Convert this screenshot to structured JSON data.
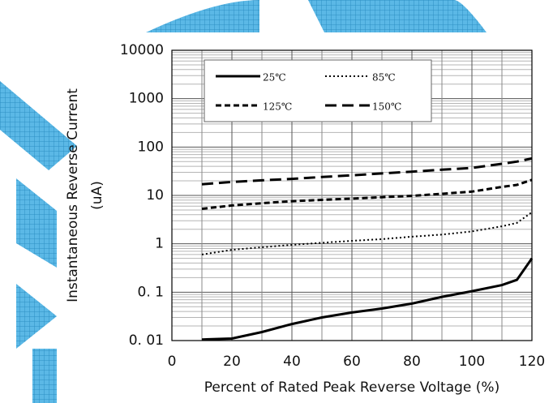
{
  "chart_data": {
    "type": "line",
    "xlabel": "Percent of Rated Peak Reverse Voltage (%)",
    "ylabel": [
      "Instantaneous Reverse Current",
      "(uA)"
    ],
    "x": [
      10,
      20,
      30,
      40,
      50,
      60,
      70,
      80,
      90,
      100,
      110,
      115,
      120
    ],
    "series": [
      {
        "name": "25℃",
        "color": "#000000",
        "style": "solid",
        "values": [
          0.0105,
          0.011,
          0.015,
          0.022,
          0.03,
          0.038,
          0.046,
          0.058,
          0.08,
          0.105,
          0.14,
          0.18,
          0.5
        ]
      },
      {
        "name": "85℃",
        "color": "#000000",
        "style": "dotted",
        "values": [
          0.6,
          0.75,
          0.85,
          0.95,
          1.05,
          1.15,
          1.25,
          1.4,
          1.55,
          1.8,
          2.3,
          2.7,
          4.5
        ]
      },
      {
        "name": "125℃",
        "color": "#000000",
        "style": "dashed",
        "values": [
          5.3,
          6.2,
          6.9,
          7.6,
          8.1,
          8.6,
          9.2,
          9.8,
          10.8,
          12,
          15,
          16.5,
          21
        ]
      },
      {
        "name": "150℃",
        "color": "#000000",
        "style": "longdash",
        "values": [
          17,
          19,
          20.5,
          22,
          24,
          26,
          28.5,
          31,
          34,
          37,
          45,
          50,
          58
        ]
      }
    ],
    "xlim": [
      0,
      120
    ],
    "xticks": [
      0,
      20,
      40,
      60,
      80,
      100,
      120
    ],
    "ylim": [
      0.01,
      10000
    ],
    "log_y": true,
    "yticks": [
      {
        "value": 0.01,
        "label": "0. 01"
      },
      {
        "value": 0.1,
        "label": "0. 1"
      },
      1,
      10,
      100,
      1000,
      10000
    ],
    "grid": true,
    "minor_grid": true,
    "legend": "upper left"
  }
}
